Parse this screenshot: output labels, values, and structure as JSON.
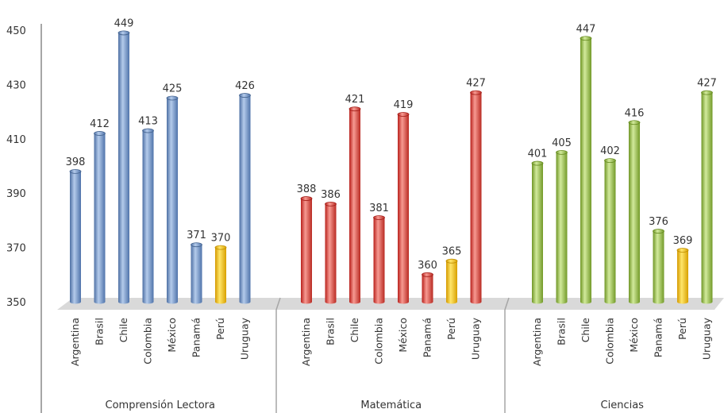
{
  "chart_data": {
    "type": "bar",
    "categories": [
      "Argentina",
      "Brasil",
      "Chile",
      "Colombia",
      "México",
      "Panamá",
      "Perú",
      "Uruguay"
    ],
    "groups": [
      {
        "name": "Comprensión Lectora",
        "values": [
          398,
          412,
          449,
          413,
          425,
          371,
          370,
          426
        ],
        "color": "#6f95cb",
        "highlight": "#f5c000"
      },
      {
        "name": "Matemática",
        "values": [
          388,
          386,
          421,
          381,
          419,
          360,
          365,
          427
        ],
        "color": "#e0413a",
        "highlight": "#f5c000"
      },
      {
        "name": "Ciencias",
        "values": [
          401,
          405,
          447,
          402,
          416,
          376,
          369,
          427
        ],
        "color": "#95c241",
        "highlight": "#f5c000"
      }
    ],
    "highlight_category": "Perú",
    "yticks": [
      350,
      370,
      390,
      410,
      430,
      450
    ],
    "ylim": [
      350,
      450
    ],
    "grid": false,
    "legend": "none"
  }
}
